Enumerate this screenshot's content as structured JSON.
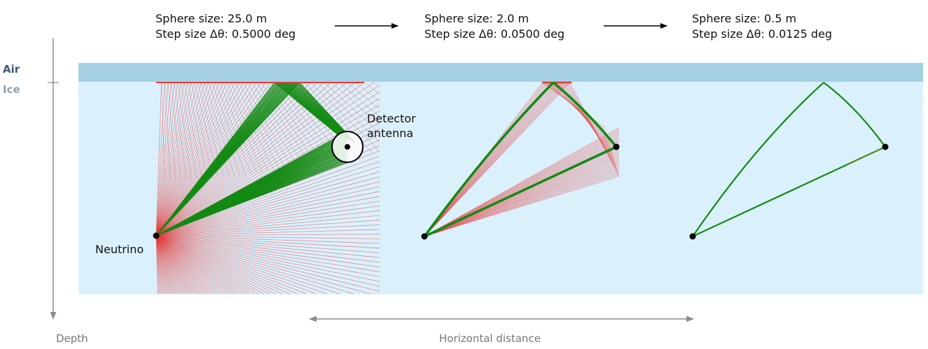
{
  "panels": [
    {
      "sphere_line": "Sphere size: 25.0 m",
      "step_line": "Step size Δθ: 0.5000 deg",
      "sphere_size_m": 25.0,
      "step_size_deg": 0.5
    },
    {
      "sphere_line": "Sphere size: 2.0 m",
      "step_line": "Step size Δθ: 0.0500 deg",
      "sphere_size_m": 2.0,
      "step_size_deg": 0.05
    },
    {
      "sphere_line": "Sphere size: 0.5 m",
      "step_line": "Step size Δθ: 0.0125 deg",
      "sphere_size_m": 0.5,
      "step_size_deg": 0.0125
    }
  ],
  "medium": {
    "air_label": "Air",
    "ice_label": "Ice"
  },
  "labels": {
    "neutrino": "Neutrino",
    "detector_line1": "Detector",
    "detector_line2": "antenna"
  },
  "axes": {
    "depth_label": "Depth",
    "horizontal_label": "Horizontal distance"
  },
  "colors": {
    "air": "#a5d0e1",
    "ice": "#daf1fc",
    "ray_miss": "#e23b3b",
    "ray_hit": "#138a13",
    "air_label": "#3e5a74",
    "ice_label": "#8aa1b4",
    "axis": "#8c8c8c"
  }
}
